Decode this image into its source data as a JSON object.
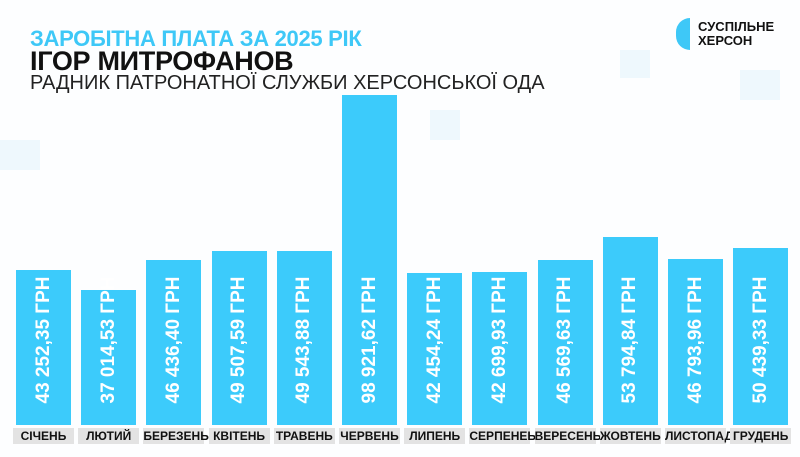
{
  "header": {
    "title": "ЗАРОБІТНА ПЛАТА ЗА 2025 РІК",
    "name": "ІГОР МИТРОФАНОВ",
    "position": "РАДНИК ПАТРОНАТНОЇ СЛУЖБИ ХЕРСОНСЬКОЇ ОДА"
  },
  "logo": {
    "line1": "СУСПІЛЬНЕ",
    "line2": "ХЕРСОН"
  },
  "colors": {
    "bar": "#3ccbfb",
    "accent": "#3ec8f7",
    "label_bg": "#e3e3e3"
  },
  "chart_data": {
    "type": "bar",
    "title": "ЗАРОБІТНА ПЛАТА ЗА 2025 РІК",
    "categories": [
      "СІЧЕНЬ",
      "ЛЮТИЙ",
      "БЕРЕЗЕНЬ",
      "КВІТЕНЬ",
      "ТРАВЕНЬ",
      "ЧЕРВЕНЬ",
      "ЛИПЕНЬ",
      "СЕРПЕНЕЬ",
      "ВЕРЕСЕНЬ",
      "ЖОВТЕНЬ",
      "ЛИСТОПАД",
      "ГРУДЕНЬ"
    ],
    "values": [
      43252.35,
      37014.53,
      46436.4,
      49507.59,
      49543.88,
      98921.62,
      42454.24,
      42699.93,
      46569.63,
      53794.84,
      46793.96,
      50439.33
    ],
    "labels": [
      "43 252,35 ГРН",
      "37 014,53 ГРН",
      "46 436,40 ГРН",
      "49 507,59 ГРН",
      "49 543,88 ГРН",
      "98 921,62 ГРН",
      "42 454,24 ГРН",
      "42 699,93 ГРН",
      "46 569,63 ГРН",
      "53 794,84 ГРН",
      "46 793,96 ГРН",
      "50 439,33 ГРН"
    ],
    "xlabel": "",
    "ylabel": "",
    "grid": false
  }
}
